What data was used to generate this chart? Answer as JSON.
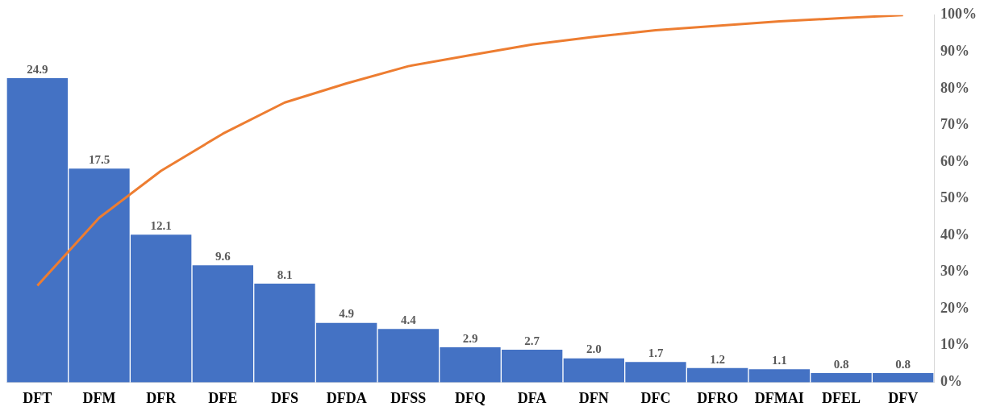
{
  "chart_data": {
    "type": "bar",
    "categories": [
      "DFT",
      "DFM",
      "DFR",
      "DFE",
      "DFS",
      "DFDA",
      "DFSS",
      "DFQ",
      "DFA",
      "DFN",
      "DFC",
      "DFRO",
      "DFMAI",
      "DFEL",
      "DFV"
    ],
    "series": [
      {
        "color": "#4472c4",
        "values": [
          24.9,
          17.5,
          12.1,
          9.6,
          8.1,
          4.9,
          4.4,
          2.9,
          2.7,
          2.0,
          1.7,
          1.2,
          1.1,
          0.8,
          0.8
        ],
        "value_labels": [
          "24.9",
          "17.5",
          "12.1",
          "9.6",
          "8.1",
          "4.9",
          "4.4",
          "2.9",
          "2.7",
          "2.0",
          "1.7",
          "1.2",
          "1.1",
          "0.8",
          "0.8"
        ]
      },
      {
        "type": "line",
        "axis": "y2",
        "color": "#ed7d31",
        "marker": "none",
        "line_style": "solid",
        "values": [
          26.3,
          44.8,
          57.6,
          67.7,
          76.2,
          81.4,
          86.1,
          89.1,
          92.0,
          94.1,
          95.9,
          97.1,
          98.3,
          99.2,
          100
        ]
      }
    ],
    "ylim": [
      0,
      30
    ],
    "y2lim": [
      0,
      100
    ],
    "y2ticks": [
      {
        "value": 0,
        "label": "0%"
      },
      {
        "value": 10,
        "label": "10%"
      },
      {
        "value": 20,
        "label": "20%"
      },
      {
        "value": 30,
        "label": "30%"
      },
      {
        "value": 40,
        "label": "40%"
      },
      {
        "value": 50,
        "label": "50%"
      },
      {
        "value": 60,
        "label": "60%"
      },
      {
        "value": 70,
        "label": "70%"
      },
      {
        "value": 80,
        "label": "80%"
      },
      {
        "value": 90,
        "label": "90%"
      },
      {
        "value": 100,
        "label": "100%"
      }
    ],
    "grid": false,
    "legend": false
  }
}
